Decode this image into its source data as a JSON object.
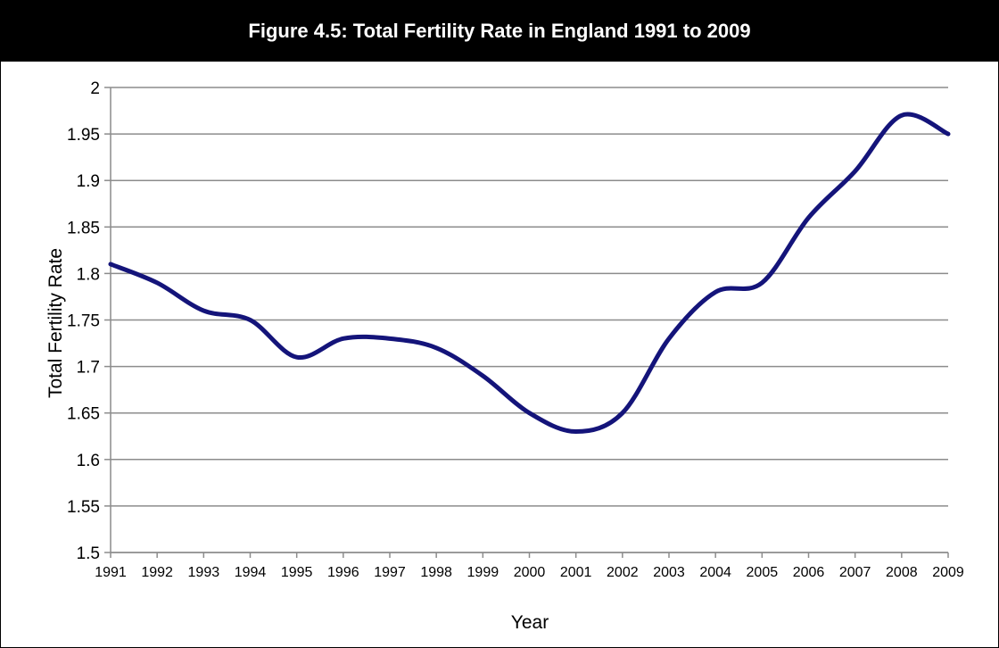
{
  "title": "Figure 4.5: Total Fertility Rate in England 1991 to 2009",
  "chart_data": {
    "type": "line",
    "title": "Figure 4.5: Total Fertility Rate in England 1991 to 2009",
    "xlabel": "Year",
    "ylabel": "Total Fertility Rate",
    "x": [
      1991,
      1992,
      1993,
      1994,
      1995,
      1996,
      1997,
      1998,
      1999,
      2000,
      2001,
      2002,
      2003,
      2004,
      2005,
      2006,
      2007,
      2008,
      2009
    ],
    "x_ticks": [
      "1991",
      "1992",
      "1993",
      "1994",
      "1995",
      "1996",
      "1997",
      "1998",
      "1999",
      "2000",
      "2001",
      "2002",
      "2003",
      "2004",
      "2005",
      "2006",
      "2007",
      "2008",
      "2009"
    ],
    "y_ticks": [
      "1.5",
      "1.55",
      "1.6",
      "1.65",
      "1.7",
      "1.75",
      "1.8",
      "1.85",
      "1.9",
      "1.95",
      "2"
    ],
    "series": [
      {
        "values": [
          1.81,
          1.79,
          1.76,
          1.75,
          1.71,
          1.73,
          1.73,
          1.72,
          1.69,
          1.65,
          1.63,
          1.65,
          1.73,
          1.78,
          1.79,
          1.86,
          1.91,
          1.97,
          1.95
        ],
        "color": "#14147a"
      }
    ],
    "ylim": [
      1.5,
      2
    ],
    "grid": "horizontal",
    "line_style": "smooth"
  }
}
